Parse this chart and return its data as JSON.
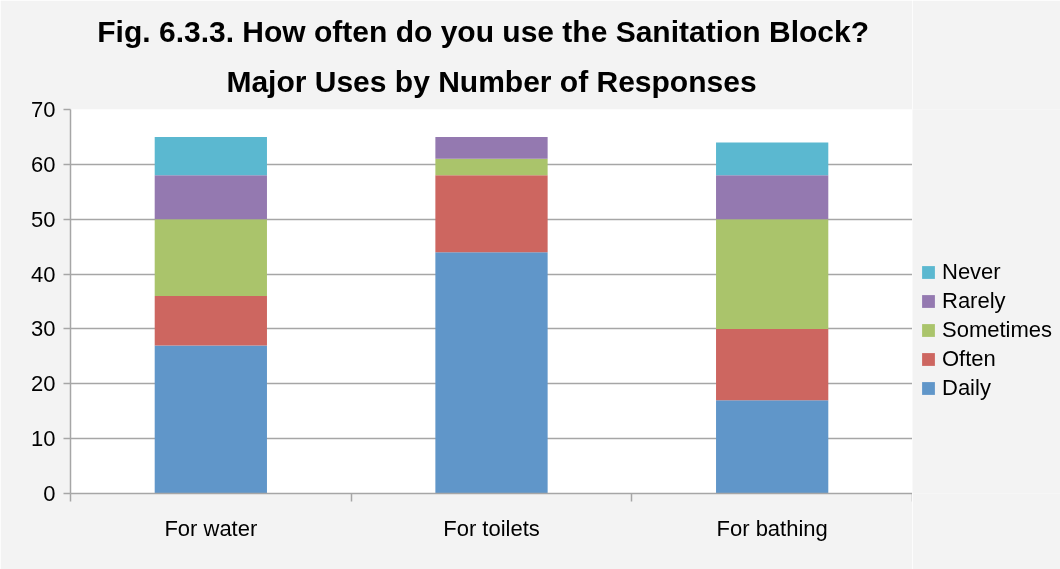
{
  "chart_data": {
    "type": "bar",
    "title": "Fig. 6.3.3.   How often do you use the Sanitation Block?",
    "subtitle": "Major Uses by Number of Responses",
    "categories": [
      "For water",
      "For toilets",
      "For bathing"
    ],
    "stacked": true,
    "series": [
      {
        "name": "Daily",
        "color": "#6096c9",
        "values": [
          27,
          44,
          17
        ]
      },
      {
        "name": "Often",
        "color": "#cd6660",
        "values": [
          9,
          14,
          13
        ]
      },
      {
        "name": "Sometimes",
        "color": "#aac46b",
        "values": [
          14,
          3,
          20
        ]
      },
      {
        "name": "Rarely",
        "color": "#9479b0",
        "values": [
          8,
          4,
          8
        ]
      },
      {
        "name": "Never",
        "color": "#5bb8d0",
        "values": [
          7,
          null,
          6
        ]
      }
    ],
    "ylim": [
      0,
      70
    ],
    "yticks": [
      0,
      10,
      20,
      30,
      40,
      50,
      60,
      70
    ],
    "grid": "y",
    "legend": "right"
  }
}
